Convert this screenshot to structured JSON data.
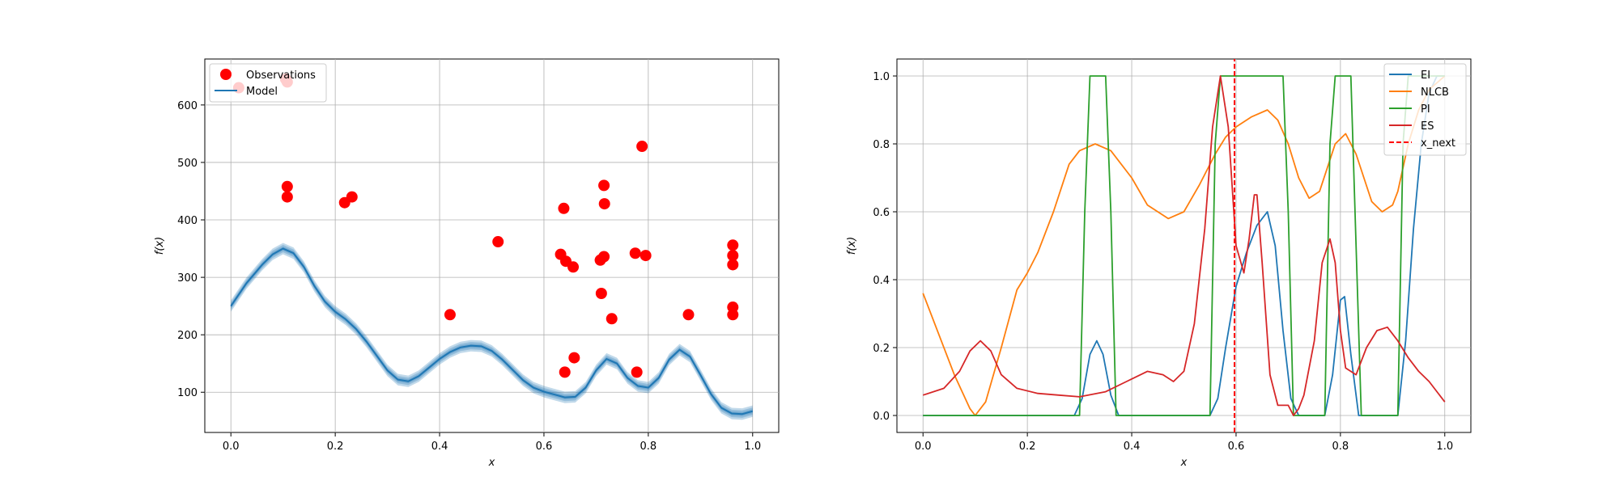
{
  "colors": {
    "model": "#1f77b4",
    "observations": "#ff0000",
    "ei": "#1f77b4",
    "nlcb": "#ff7f0e",
    "pi": "#2ca02c",
    "es": "#d62728",
    "x_next": "#ff0000",
    "grid": "#b0b0b0"
  },
  "chart_data": [
    {
      "type": "scatter+line",
      "xlabel": "x",
      "ylabel": "f(x)",
      "xlim": [
        -0.05,
        1.05
      ],
      "ylim": [
        30,
        680
      ],
      "xticks": [
        0.0,
        0.2,
        0.4,
        0.6,
        0.8,
        1.0
      ],
      "xtick_labels": [
        "0.0",
        "0.2",
        "0.4",
        "0.6",
        "0.8",
        "1.0"
      ],
      "yticks": [
        100,
        200,
        300,
        400,
        500,
        600
      ],
      "ytick_labels": [
        "100",
        "200",
        "300",
        "400",
        "500",
        "600"
      ],
      "grid": true,
      "legend_position": "top-left",
      "legend": [
        "Observations",
        "Model"
      ],
      "observations": {
        "x": [
          0.015,
          0.105,
          0.108,
          0.108,
          0.108,
          0.218,
          0.232,
          0.42,
          0.512,
          0.632,
          0.638,
          0.642,
          0.656,
          0.64,
          0.658,
          0.708,
          0.71,
          0.715,
          0.715,
          0.716,
          0.73,
          0.775,
          0.778,
          0.788,
          0.795,
          0.877,
          0.962,
          0.962,
          0.962,
          0.962,
          0.962
        ],
        "y": [
          630,
          645,
          640,
          458,
          440,
          430,
          440,
          235,
          362,
          340,
          420,
          328,
          318,
          135,
          160,
          330,
          272,
          336,
          460,
          428,
          228,
          342,
          135,
          528,
          338,
          235,
          356,
          338,
          322,
          248,
          235
        ]
      },
      "model": {
        "x": [
          0.0,
          0.03,
          0.06,
          0.08,
          0.1,
          0.12,
          0.14,
          0.16,
          0.18,
          0.2,
          0.22,
          0.24,
          0.26,
          0.28,
          0.3,
          0.32,
          0.34,
          0.36,
          0.38,
          0.4,
          0.42,
          0.44,
          0.46,
          0.48,
          0.5,
          0.52,
          0.54,
          0.56,
          0.58,
          0.6,
          0.62,
          0.64,
          0.66,
          0.68,
          0.7,
          0.72,
          0.74,
          0.76,
          0.78,
          0.8,
          0.82,
          0.84,
          0.86,
          0.88,
          0.9,
          0.92,
          0.94,
          0.96,
          0.98,
          1.0
        ],
        "y": [
          250,
          290,
          322,
          340,
          350,
          342,
          318,
          285,
          258,
          240,
          227,
          210,
          188,
          163,
          138,
          122,
          119,
          128,
          143,
          158,
          170,
          178,
          181,
          180,
          172,
          157,
          139,
          121,
          108,
          101,
          96,
          91,
          92,
          108,
          138,
          158,
          150,
          125,
          111,
          108,
          125,
          157,
          174,
          162,
          130,
          97,
          73,
          63,
          62,
          67
        ],
        "band": 10
      }
    },
    {
      "type": "line",
      "xlabel": "x",
      "ylabel": "f(x)",
      "xlim": [
        -0.05,
        1.05
      ],
      "ylim": [
        -0.05,
        1.05
      ],
      "xticks": [
        0.0,
        0.2,
        0.4,
        0.6,
        0.8,
        1.0
      ],
      "xtick_labels": [
        "0.0",
        "0.2",
        "0.4",
        "0.6",
        "0.8",
        "1.0"
      ],
      "yticks": [
        0.0,
        0.2,
        0.4,
        0.6,
        0.8,
        1.0
      ],
      "ytick_labels": [
        "0.0",
        "0.2",
        "0.4",
        "0.6",
        "0.8",
        "1.0"
      ],
      "grid": true,
      "legend_position": "top-right",
      "x_next": 0.597,
      "series": [
        {
          "name": "EI",
          "color": "#1f77b4",
          "x": [
            0.0,
            0.29,
            0.305,
            0.32,
            0.333,
            0.345,
            0.36,
            0.375,
            0.4,
            0.55,
            0.565,
            0.58,
            0.6,
            0.62,
            0.64,
            0.66,
            0.675,
            0.69,
            0.705,
            0.72,
            0.77,
            0.785,
            0.8,
            0.808,
            0.82,
            0.835,
            0.9,
            0.91,
            0.925,
            0.94,
            0.955,
            0.97,
            0.985,
            1.0
          ],
          "y": [
            0.0,
            0.0,
            0.05,
            0.18,
            0.22,
            0.18,
            0.06,
            0.0,
            0.0,
            0.0,
            0.05,
            0.2,
            0.38,
            0.48,
            0.56,
            0.6,
            0.5,
            0.25,
            0.05,
            0.0,
            0.0,
            0.12,
            0.34,
            0.35,
            0.18,
            0.0,
            0.0,
            0.0,
            0.22,
            0.55,
            0.8,
            0.95,
            1.0,
            1.0
          ]
        },
        {
          "name": "NLCB",
          "color": "#ff7f0e",
          "x": [
            0.0,
            0.03,
            0.06,
            0.09,
            0.1,
            0.12,
            0.15,
            0.18,
            0.2,
            0.22,
            0.25,
            0.28,
            0.3,
            0.33,
            0.36,
            0.4,
            0.43,
            0.47,
            0.5,
            0.53,
            0.56,
            0.58,
            0.6,
            0.63,
            0.66,
            0.68,
            0.7,
            0.72,
            0.74,
            0.76,
            0.79,
            0.81,
            0.83,
            0.86,
            0.88,
            0.9,
            0.91,
            0.93,
            0.95,
            0.97,
            1.0
          ],
          "y": [
            0.36,
            0.24,
            0.12,
            0.02,
            0.0,
            0.04,
            0.2,
            0.37,
            0.42,
            0.48,
            0.6,
            0.74,
            0.78,
            0.8,
            0.78,
            0.7,
            0.62,
            0.58,
            0.6,
            0.68,
            0.77,
            0.82,
            0.85,
            0.88,
            0.9,
            0.87,
            0.8,
            0.7,
            0.64,
            0.66,
            0.8,
            0.83,
            0.77,
            0.63,
            0.6,
            0.62,
            0.66,
            0.8,
            0.9,
            0.96,
            1.0
          ]
        },
        {
          "name": "PI",
          "color": "#2ca02c",
          "x": [
            0.0,
            0.3,
            0.31,
            0.32,
            0.35,
            0.36,
            0.37,
            0.55,
            0.56,
            0.57,
            0.69,
            0.7,
            0.71,
            0.77,
            0.78,
            0.79,
            0.82,
            0.83,
            0.84,
            0.91,
            0.92,
            0.93,
            1.0
          ],
          "y": [
            0.0,
            0.0,
            0.6,
            1.0,
            1.0,
            0.6,
            0.0,
            0.0,
            0.8,
            1.0,
            1.0,
            0.6,
            0.0,
            0.0,
            0.8,
            1.0,
            1.0,
            0.5,
            0.0,
            0.0,
            0.8,
            1.0,
            1.0
          ]
        },
        {
          "name": "ES",
          "color": "#d62728",
          "x": [
            0.0,
            0.04,
            0.07,
            0.09,
            0.11,
            0.13,
            0.15,
            0.18,
            0.22,
            0.26,
            0.3,
            0.35,
            0.39,
            0.43,
            0.46,
            0.48,
            0.5,
            0.52,
            0.54,
            0.555,
            0.57,
            0.585,
            0.6,
            0.615,
            0.625,
            0.635,
            0.64,
            0.65,
            0.665,
            0.68,
            0.7,
            0.71,
            0.72,
            0.73,
            0.75,
            0.765,
            0.78,
            0.79,
            0.8,
            0.81,
            0.83,
            0.85,
            0.87,
            0.89,
            0.91,
            0.93,
            0.95,
            0.97,
            1.0
          ],
          "y": [
            0.06,
            0.08,
            0.13,
            0.19,
            0.22,
            0.19,
            0.12,
            0.08,
            0.065,
            0.06,
            0.055,
            0.07,
            0.1,
            0.13,
            0.12,
            0.1,
            0.13,
            0.27,
            0.55,
            0.85,
            1.0,
            0.85,
            0.5,
            0.42,
            0.52,
            0.65,
            0.65,
            0.45,
            0.12,
            0.03,
            0.03,
            0.0,
            0.02,
            0.06,
            0.22,
            0.45,
            0.52,
            0.45,
            0.25,
            0.14,
            0.12,
            0.2,
            0.25,
            0.26,
            0.22,
            0.17,
            0.13,
            0.1,
            0.04
          ]
        },
        {
          "name": "x_next",
          "color": "#ff0000",
          "style": "dashed",
          "x": [
            0.597,
            0.597
          ],
          "y": [
            -0.05,
            1.05
          ]
        }
      ]
    }
  ]
}
